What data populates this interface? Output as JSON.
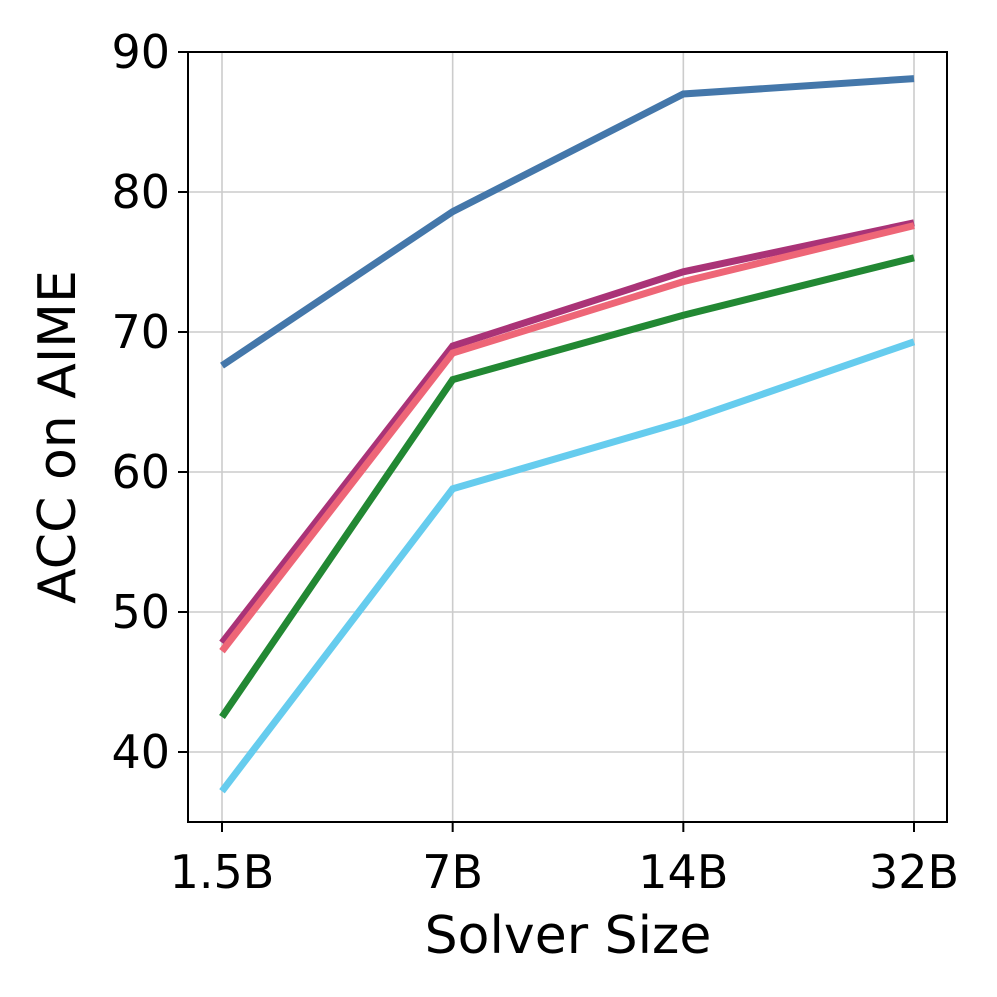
{
  "chart_data": {
    "type": "line",
    "title": "",
    "xlabel": "Solver Size",
    "ylabel": "ACC on AIME",
    "categories": [
      "1.5B",
      "7B",
      "14B",
      "32B"
    ],
    "ylim": [
      35,
      90
    ],
    "yticks": [
      40,
      50,
      60,
      70,
      80,
      90
    ],
    "grid": true,
    "legend": false,
    "series": [
      {
        "color": "#4477aa",
        "values": [
          67.6,
          78.6,
          87.0,
          88.1
        ]
      },
      {
        "color": "#aa3377",
        "values": [
          47.8,
          69.0,
          74.3,
          77.8
        ]
      },
      {
        "color": "#ee6677",
        "values": [
          47.2,
          68.5,
          73.6,
          77.6
        ]
      },
      {
        "color": "#228833",
        "values": [
          42.5,
          66.6,
          71.2,
          75.3
        ]
      },
      {
        "color": "#66ccee",
        "values": [
          37.2,
          58.8,
          63.6,
          69.3
        ]
      }
    ]
  }
}
